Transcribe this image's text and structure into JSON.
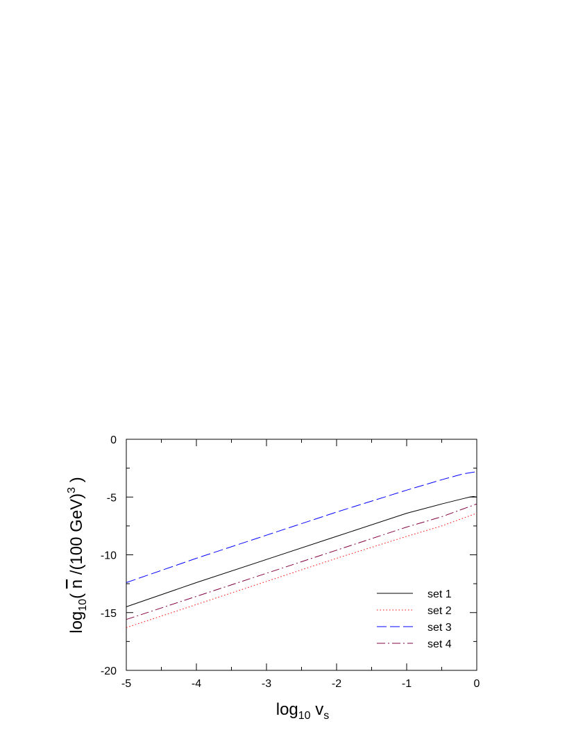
{
  "chart_data": {
    "type": "line",
    "xlabel": {
      "main": "log",
      "sub": "10",
      "var": "v",
      "var_sub": "s"
    },
    "ylabel": {
      "prefix": "log",
      "sub": "10",
      "open": "( ",
      "bar_n": "n",
      "middle": " /(100 GeV)",
      "sup": "3",
      "close": " )"
    },
    "xlim": [
      -5,
      0
    ],
    "ylim": [
      -20,
      0
    ],
    "x_ticks": [
      "-5",
      "-4",
      "-3",
      "-2",
      "-1",
      "0"
    ],
    "y_ticks": [
      "0",
      "-5",
      "-10",
      "-15",
      "-20"
    ],
    "grid": false,
    "legend_position": "bottom-right",
    "series": [
      {
        "name": "set 1",
        "color": "#000000",
        "dash": "solid",
        "x": [
          -5,
          -4,
          -3,
          -2,
          -1,
          -0.5,
          -0.2,
          -0.1,
          -0.05,
          0
        ],
        "y": [
          -14.5,
          -12.4,
          -10.4,
          -8.4,
          -6.4,
          -5.6,
          -5.15,
          -5.0,
          -4.95,
          -5.0
        ]
      },
      {
        "name": "set 2",
        "color": "#ff0000",
        "dash": "dotted",
        "x": [
          -5,
          -4,
          -3,
          -2,
          -1,
          -0.5,
          0
        ],
        "y": [
          -16.3,
          -14.3,
          -12.3,
          -10.3,
          -8.4,
          -7.5,
          -6.4
        ]
      },
      {
        "name": "set 3",
        "color": "#0000ff",
        "dash": "dashed",
        "x": [
          -5,
          -4,
          -3,
          -2,
          -1,
          -0.5,
          -0.2,
          0
        ],
        "y": [
          -12.4,
          -10.3,
          -8.3,
          -6.3,
          -4.4,
          -3.5,
          -3.0,
          -2.8
        ]
      },
      {
        "name": "set 4",
        "color": "#800040",
        "dash": "dashdot",
        "x": [
          -5,
          -4,
          -3,
          -2,
          -1,
          -0.5,
          0
        ],
        "y": [
          -15.6,
          -13.6,
          -11.6,
          -9.6,
          -7.6,
          -6.7,
          -5.6
        ]
      }
    ]
  }
}
